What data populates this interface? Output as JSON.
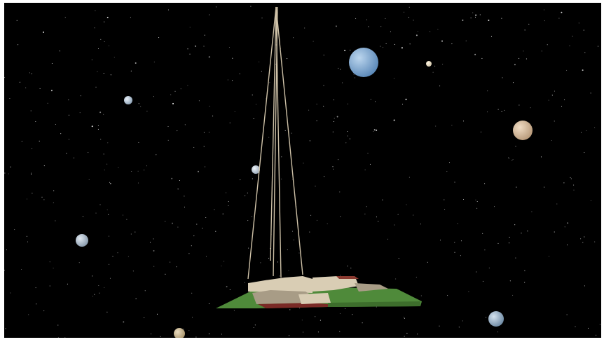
{
  "scene": {
    "background_color": "#000000",
    "frame_color": "#ffffff",
    "star_color": "#ffffff",
    "planets": [
      {
        "name": "earth-like-planet-large",
        "color": "#5a88b8",
        "highlight": "#bcd6ee"
      },
      {
        "name": "small-bright-moon",
        "color": "#cfc3a8",
        "highlight": "#fff6e2"
      },
      {
        "name": "icy-moon-upper-left",
        "color": "#8fa4b8",
        "highlight": "#e8f0f8"
      },
      {
        "name": "tan-planet-right",
        "color": "#b89a7a",
        "highlight": "#f0dcc4"
      },
      {
        "name": "icy-moon-center",
        "color": "#9aaabb",
        "highlight": "#eef4fa"
      },
      {
        "name": "icy-moon-left",
        "color": "#8799ab",
        "highlight": "#e0e8f0"
      },
      {
        "name": "earth-like-planet-lower-right",
        "color": "#6e8aa4",
        "highlight": "#d4e2ee"
      },
      {
        "name": "gas-giant-bottom",
        "color": "#a8946c",
        "highlight": "#eadcc0"
      }
    ],
    "station": {
      "grass_color": "#4f8a3a",
      "grass_dark_color": "#3d6e2c",
      "building_color": "#d9cdb4",
      "building_shadow_color": "#a89c86",
      "roof_color": "#8a3a30",
      "trim_color": "#7a2a26",
      "cable_color": "#cfc2a8"
    }
  }
}
